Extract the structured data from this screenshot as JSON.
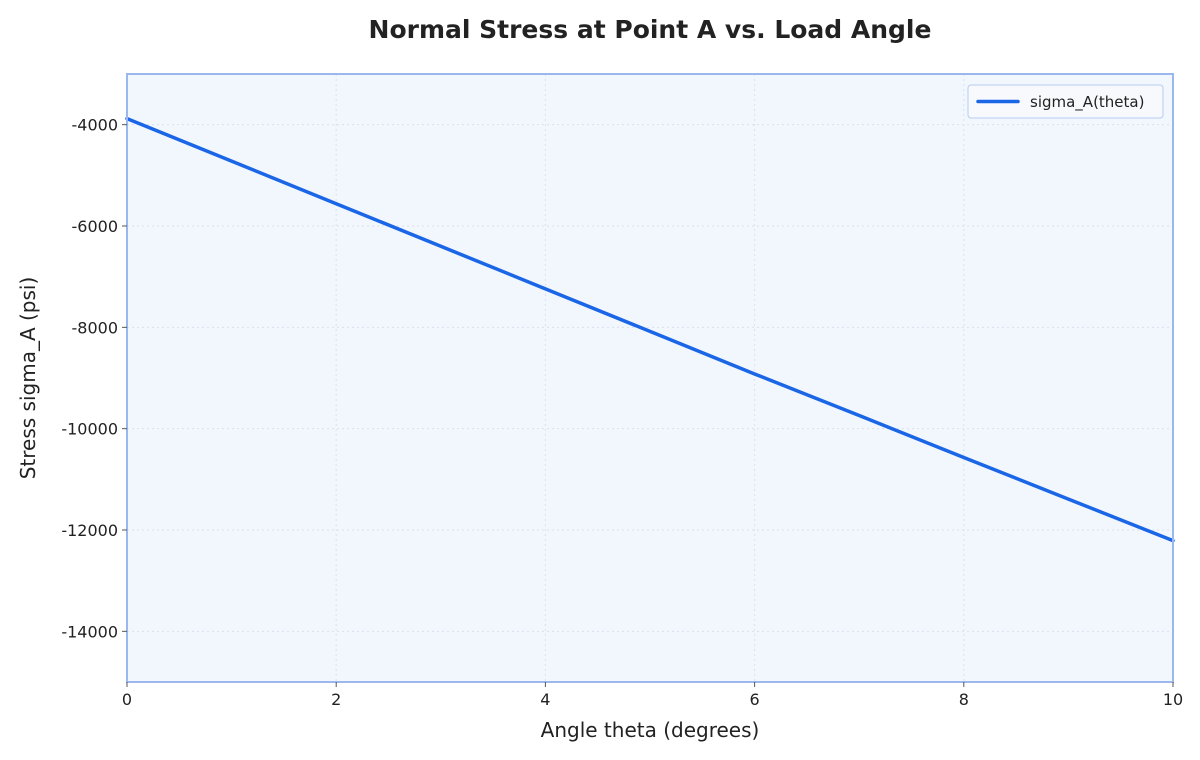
{
  "chart_data": {
    "type": "line",
    "title": "Normal Stress at Point A vs. Load Angle",
    "xlabel": "Angle theta (degrees)",
    "ylabel": "Stress sigma_A (psi)",
    "xlim": [
      0,
      10
    ],
    "ylim": [
      -15000,
      -3000
    ],
    "xticks": [
      0,
      2,
      4,
      6,
      8,
      10
    ],
    "yticks": [
      -14000,
      -12000,
      -10000,
      -8000,
      -6000,
      -4000
    ],
    "xtick_labels": [
      "0",
      "2",
      "4",
      "6",
      "8",
      "10"
    ],
    "ytick_labels": [
      "-14000",
      "-12000",
      "-10000",
      "-8000",
      "-6000",
      "-4000"
    ],
    "grid": true,
    "legend_position": "top-right",
    "series": [
      {
        "name": "sigma_A(theta)",
        "color": "#1a66e6",
        "x": [
          0,
          1,
          2,
          3,
          4,
          5,
          6,
          7,
          8,
          9,
          10
        ],
        "y": [
          -3880,
          -4720,
          -5560,
          -6400,
          -7240,
          -8080,
          -8920,
          -9740,
          -10570,
          -11390,
          -12210
        ]
      }
    ],
    "colors": {
      "plot_background": "#f2f7fe",
      "frame": "#9ab8ee",
      "grid": "#d9e2ee"
    }
  }
}
